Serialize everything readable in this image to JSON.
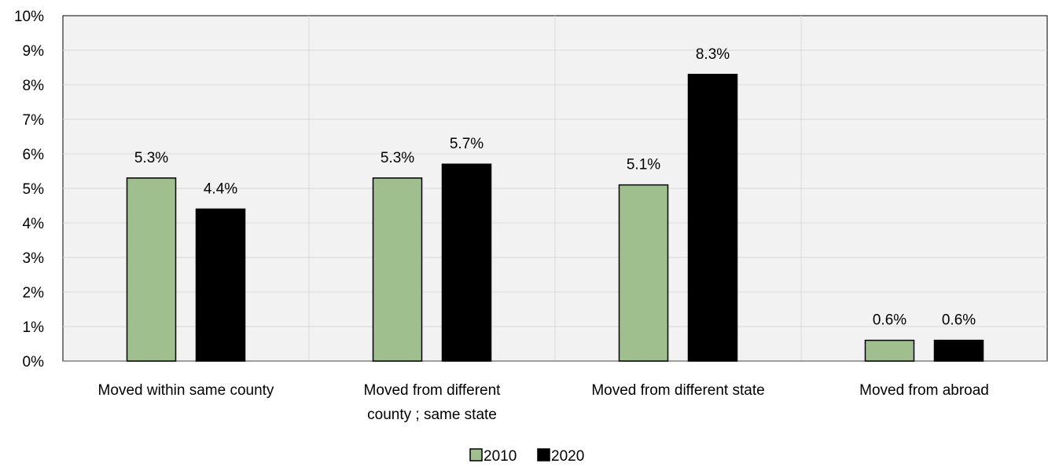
{
  "chart_data": {
    "type": "bar",
    "title": "",
    "xlabel": "",
    "ylabel": "",
    "categories": [
      [
        "Moved within same county"
      ],
      [
        "Moved from different",
        "county ; same state"
      ],
      [
        "Moved from different state"
      ],
      [
        "Moved from abroad"
      ]
    ],
    "series": [
      {
        "name": "2010",
        "values": [
          5.3,
          5.3,
          5.1,
          0.6
        ],
        "labels": [
          "5.3%",
          "5.3%",
          "5.1%",
          "0.6%"
        ],
        "color": "#9fbf8f"
      },
      {
        "name": "2020",
        "values": [
          4.4,
          5.7,
          8.3,
          0.6
        ],
        "labels": [
          "4.4%",
          "5.7%",
          "8.3%",
          "0.6%"
        ],
        "color": "#000000"
      }
    ],
    "ylim": [
      0,
      10
    ],
    "yticks": [
      "0%",
      "1%",
      "2%",
      "3%",
      "4%",
      "5%",
      "6%",
      "7%",
      "8%",
      "9%",
      "10%"
    ],
    "grid": true,
    "legend_position": "bottom"
  }
}
